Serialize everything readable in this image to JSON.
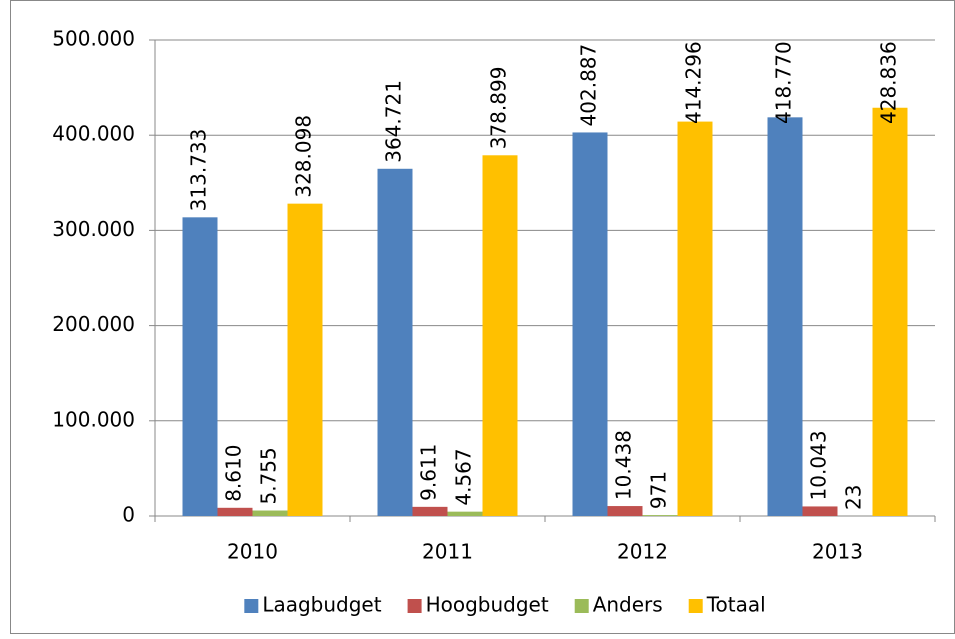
{
  "chart_data": {
    "type": "bar",
    "categories": [
      "2010",
      "2011",
      "2012",
      "2013"
    ],
    "series": [
      {
        "name": "Laagbudget",
        "color": "#4f81bd",
        "values": [
          313733,
          364721,
          402887,
          418770
        ],
        "value_labels": [
          "313.733",
          "364.721",
          "402.887",
          "418.770"
        ]
      },
      {
        "name": "Hoogbudget",
        "color": "#c0504d",
        "values": [
          8610,
          9611,
          10438,
          10043
        ],
        "value_labels": [
          "8.610",
          "9.611",
          "10.438",
          "10.043"
        ]
      },
      {
        "name": "Anders",
        "color": "#9bbb59",
        "values": [
          5755,
          4567,
          971,
          23
        ],
        "value_labels": [
          "5.755",
          "4.567",
          "971",
          "23"
        ]
      },
      {
        "name": "Totaal",
        "color": "#ffc000",
        "values": [
          328098,
          378899,
          414296,
          428836
        ],
        "value_labels": [
          "328.098",
          "378.899",
          "414.296",
          "428.836"
        ]
      }
    ],
    "ylim": [
      0,
      500000
    ],
    "yticks": [
      0,
      {
        "value": 100000,
        "label": "100.000"
      },
      {
        "value": 200000,
        "label": "200.000"
      },
      {
        "value": 300000,
        "label": "300.000"
      },
      {
        "value": 400000,
        "label": "400.000"
      },
      {
        "value": 500000,
        "label": "500.000"
      }
    ],
    "grid": true,
    "legend": "bottom"
  }
}
